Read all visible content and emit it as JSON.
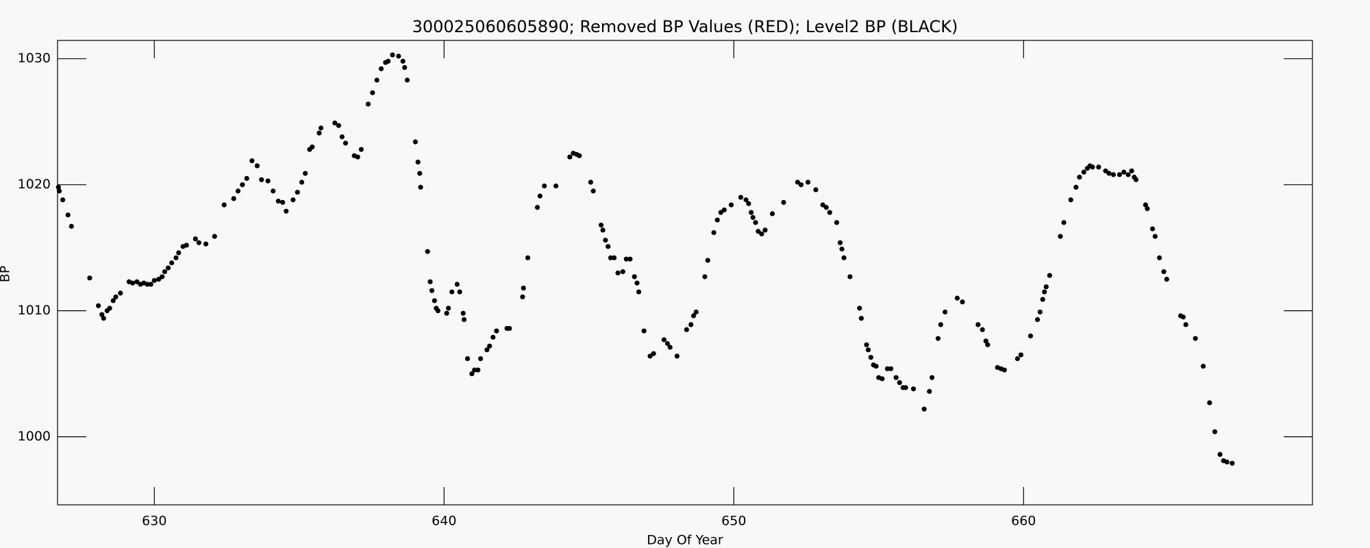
{
  "chart_data": {
    "type": "scatter",
    "title": "300025060605890; Removed BP Values (RED); Level2 BP (BLACK)",
    "xlabel": "Day Of Year",
    "ylabel": "BP",
    "color": "#000000",
    "xlim": [
      626.66,
      669.97
    ],
    "ylim": [
      994.6,
      1031.45
    ],
    "xticks": [
      630,
      640,
      650,
      660
    ],
    "yticks": [
      1000,
      1010,
      1020,
      1030
    ],
    "x": [
      626.69,
      626.72,
      626.84,
      627.02,
      627.14,
      627.77,
      628.07,
      628.19,
      628.25,
      628.37,
      628.46,
      628.58,
      628.67,
      628.83,
      629.13,
      629.25,
      629.4,
      629.52,
      629.64,
      629.76,
      629.88,
      630.0,
      630.15,
      630.27,
      630.36,
      630.48,
      630.6,
      630.75,
      630.84,
      630.99,
      631.11,
      631.42,
      631.54,
      631.78,
      632.08,
      632.41,
      632.74,
      632.89,
      633.04,
      633.19,
      633.37,
      633.55,
      633.7,
      633.92,
      634.1,
      634.28,
      634.43,
      634.55,
      634.79,
      634.94,
      635.09,
      635.21,
      635.36,
      635.45,
      635.69,
      635.75,
      636.23,
      636.36,
      636.48,
      636.6,
      636.9,
      637.02,
      637.14,
      637.38,
      637.53,
      637.68,
      637.83,
      637.98,
      638.07,
      638.22,
      638.43,
      638.58,
      638.64,
      638.73,
      639.01,
      639.1,
      639.16,
      639.19,
      639.43,
      639.52,
      639.58,
      639.67,
      639.73,
      639.79,
      640.09,
      640.15,
      640.27,
      640.45,
      640.54,
      640.66,
      640.69,
      640.81,
      640.96,
      641.05,
      641.17,
      641.26,
      641.48,
      641.57,
      641.69,
      641.81,
      642.17,
      642.26,
      642.71,
      642.74,
      642.89,
      643.22,
      643.31,
      643.46,
      643.86,
      644.34,
      644.46,
      644.58,
      644.67,
      645.06,
      645.15,
      645.42,
      645.48,
      645.57,
      645.66,
      645.75,
      645.87,
      646.0,
      646.17,
      646.29,
      646.42,
      646.57,
      646.66,
      646.72,
      646.9,
      647.11,
      647.23,
      647.59,
      647.71,
      647.8,
      648.04,
      648.37,
      648.52,
      648.61,
      648.7,
      649.0,
      649.1,
      649.31,
      649.43,
      649.55,
      649.67,
      649.91,
      650.24,
      650.42,
      650.51,
      650.6,
      650.66,
      650.75,
      650.84,
      650.96,
      651.08,
      651.33,
      651.72,
      652.2,
      652.32,
      652.56,
      652.83,
      653.07,
      653.19,
      653.31,
      653.55,
      653.67,
      653.73,
      653.8,
      654.01,
      654.34,
      654.4,
      654.58,
      654.64,
      654.73,
      654.82,
      654.91,
      655.0,
      655.12,
      655.3,
      655.42,
      655.6,
      655.72,
      655.84,
      655.93,
      656.2,
      656.57,
      656.75,
      656.84,
      657.05,
      657.14,
      657.29,
      657.71,
      657.89,
      658.43,
      658.58,
      658.7,
      658.76,
      659.1,
      659.22,
      659.34,
      659.79,
      659.91,
      660.24,
      660.48,
      660.57,
      660.66,
      660.72,
      660.78,
      660.9,
      661.27,
      661.39,
      661.63,
      661.81,
      661.93,
      662.08,
      662.2,
      662.29,
      662.38,
      662.59,
      662.83,
      662.95,
      663.1,
      663.31,
      663.46,
      663.61,
      663.73,
      663.82,
      663.88,
      664.21,
      664.27,
      664.45,
      664.54,
      664.69,
      664.84,
      664.94,
      665.42,
      665.51,
      665.6,
      665.93,
      666.2,
      666.42,
      666.6,
      666.78,
      666.9,
      667.02,
      667.2
    ],
    "y": [
      1019.8,
      1019.5,
      1018.8,
      1017.6,
      1016.7,
      1012.6,
      1010.4,
      1009.7,
      1009.4,
      1010.0,
      1010.2,
      1010.8,
      1011.1,
      1011.4,
      1012.3,
      1012.2,
      1012.3,
      1012.1,
      1012.2,
      1012.1,
      1012.1,
      1012.4,
      1012.5,
      1012.7,
      1013.1,
      1013.4,
      1013.8,
      1014.2,
      1014.6,
      1015.1,
      1015.2,
      1015.7,
      1015.4,
      1015.3,
      1015.9,
      1018.4,
      1018.9,
      1019.5,
      1020.0,
      1020.5,
      1021.9,
      1021.5,
      1020.4,
      1020.3,
      1019.5,
      1018.7,
      1018.6,
      1017.9,
      1018.8,
      1019.4,
      1020.2,
      1020.9,
      1022.8,
      1023.0,
      1024.1,
      1024.5,
      1024.9,
      1024.7,
      1023.8,
      1023.3,
      1022.3,
      1022.2,
      1022.8,
      1026.4,
      1027.3,
      1028.3,
      1029.2,
      1029.7,
      1029.8,
      1030.3,
      1030.2,
      1029.8,
      1029.3,
      1028.3,
      1023.4,
      1021.8,
      1020.9,
      1019.8,
      1014.7,
      1012.3,
      1011.6,
      1010.8,
      1010.2,
      1010.0,
      1009.8,
      1010.2,
      1011.5,
      1012.1,
      1011.5,
      1009.8,
      1009.3,
      1006.2,
      1005.0,
      1005.3,
      1005.3,
      1006.2,
      1006.9,
      1007.2,
      1007.9,
      1008.4,
      1008.6,
      1008.6,
      1011.1,
      1011.8,
      1014.2,
      1018.2,
      1019.1,
      1019.9,
      1019.9,
      1022.2,
      1022.5,
      1022.4,
      1022.3,
      1020.2,
      1019.5,
      1016.8,
      1016.4,
      1015.6,
      1015.1,
      1014.2,
      1014.2,
      1013.0,
      1013.1,
      1014.1,
      1014.1,
      1012.7,
      1012.2,
      1011.5,
      1008.4,
      1006.4,
      1006.6,
      1007.7,
      1007.4,
      1007.1,
      1006.4,
      1008.5,
      1008.9,
      1009.6,
      1009.9,
      1012.7,
      1014.0,
      1016.2,
      1017.2,
      1017.8,
      1018.0,
      1018.4,
      1019.0,
      1018.8,
      1018.5,
      1017.8,
      1017.4,
      1017.0,
      1016.3,
      1016.1,
      1016.4,
      1017.7,
      1018.6,
      1020.2,
      1020.0,
      1020.2,
      1019.6,
      1018.4,
      1018.2,
      1017.8,
      1017.0,
      1015.4,
      1014.9,
      1014.2,
      1012.7,
      1010.2,
      1009.4,
      1007.3,
      1006.9,
      1006.3,
      1005.7,
      1005.6,
      1004.7,
      1004.6,
      1005.4,
      1005.4,
      1004.7,
      1004.3,
      1003.9,
      1003.9,
      1003.8,
      1002.2,
      1003.6,
      1004.7,
      1007.8,
      1008.9,
      1009.9,
      1011.0,
      1010.7,
      1008.9,
      1008.5,
      1007.6,
      1007.3,
      1005.5,
      1005.4,
      1005.3,
      1006.2,
      1006.5,
      1008.0,
      1009.3,
      1009.9,
      1010.9,
      1011.5,
      1011.9,
      1012.8,
      1015.9,
      1017.0,
      1018.8,
      1019.8,
      1020.6,
      1021.0,
      1021.3,
      1021.5,
      1021.4,
      1021.4,
      1021.1,
      1020.9,
      1020.8,
      1020.8,
      1021.0,
      1020.8,
      1021.1,
      1020.6,
      1020.4,
      1018.4,
      1018.1,
      1016.5,
      1015.9,
      1014.2,
      1013.1,
      1012.5,
      1009.6,
      1009.5,
      1008.9,
      1007.8,
      1005.6,
      1002.7,
      1000.4,
      998.6,
      998.1,
      998.0,
      997.9
    ]
  }
}
